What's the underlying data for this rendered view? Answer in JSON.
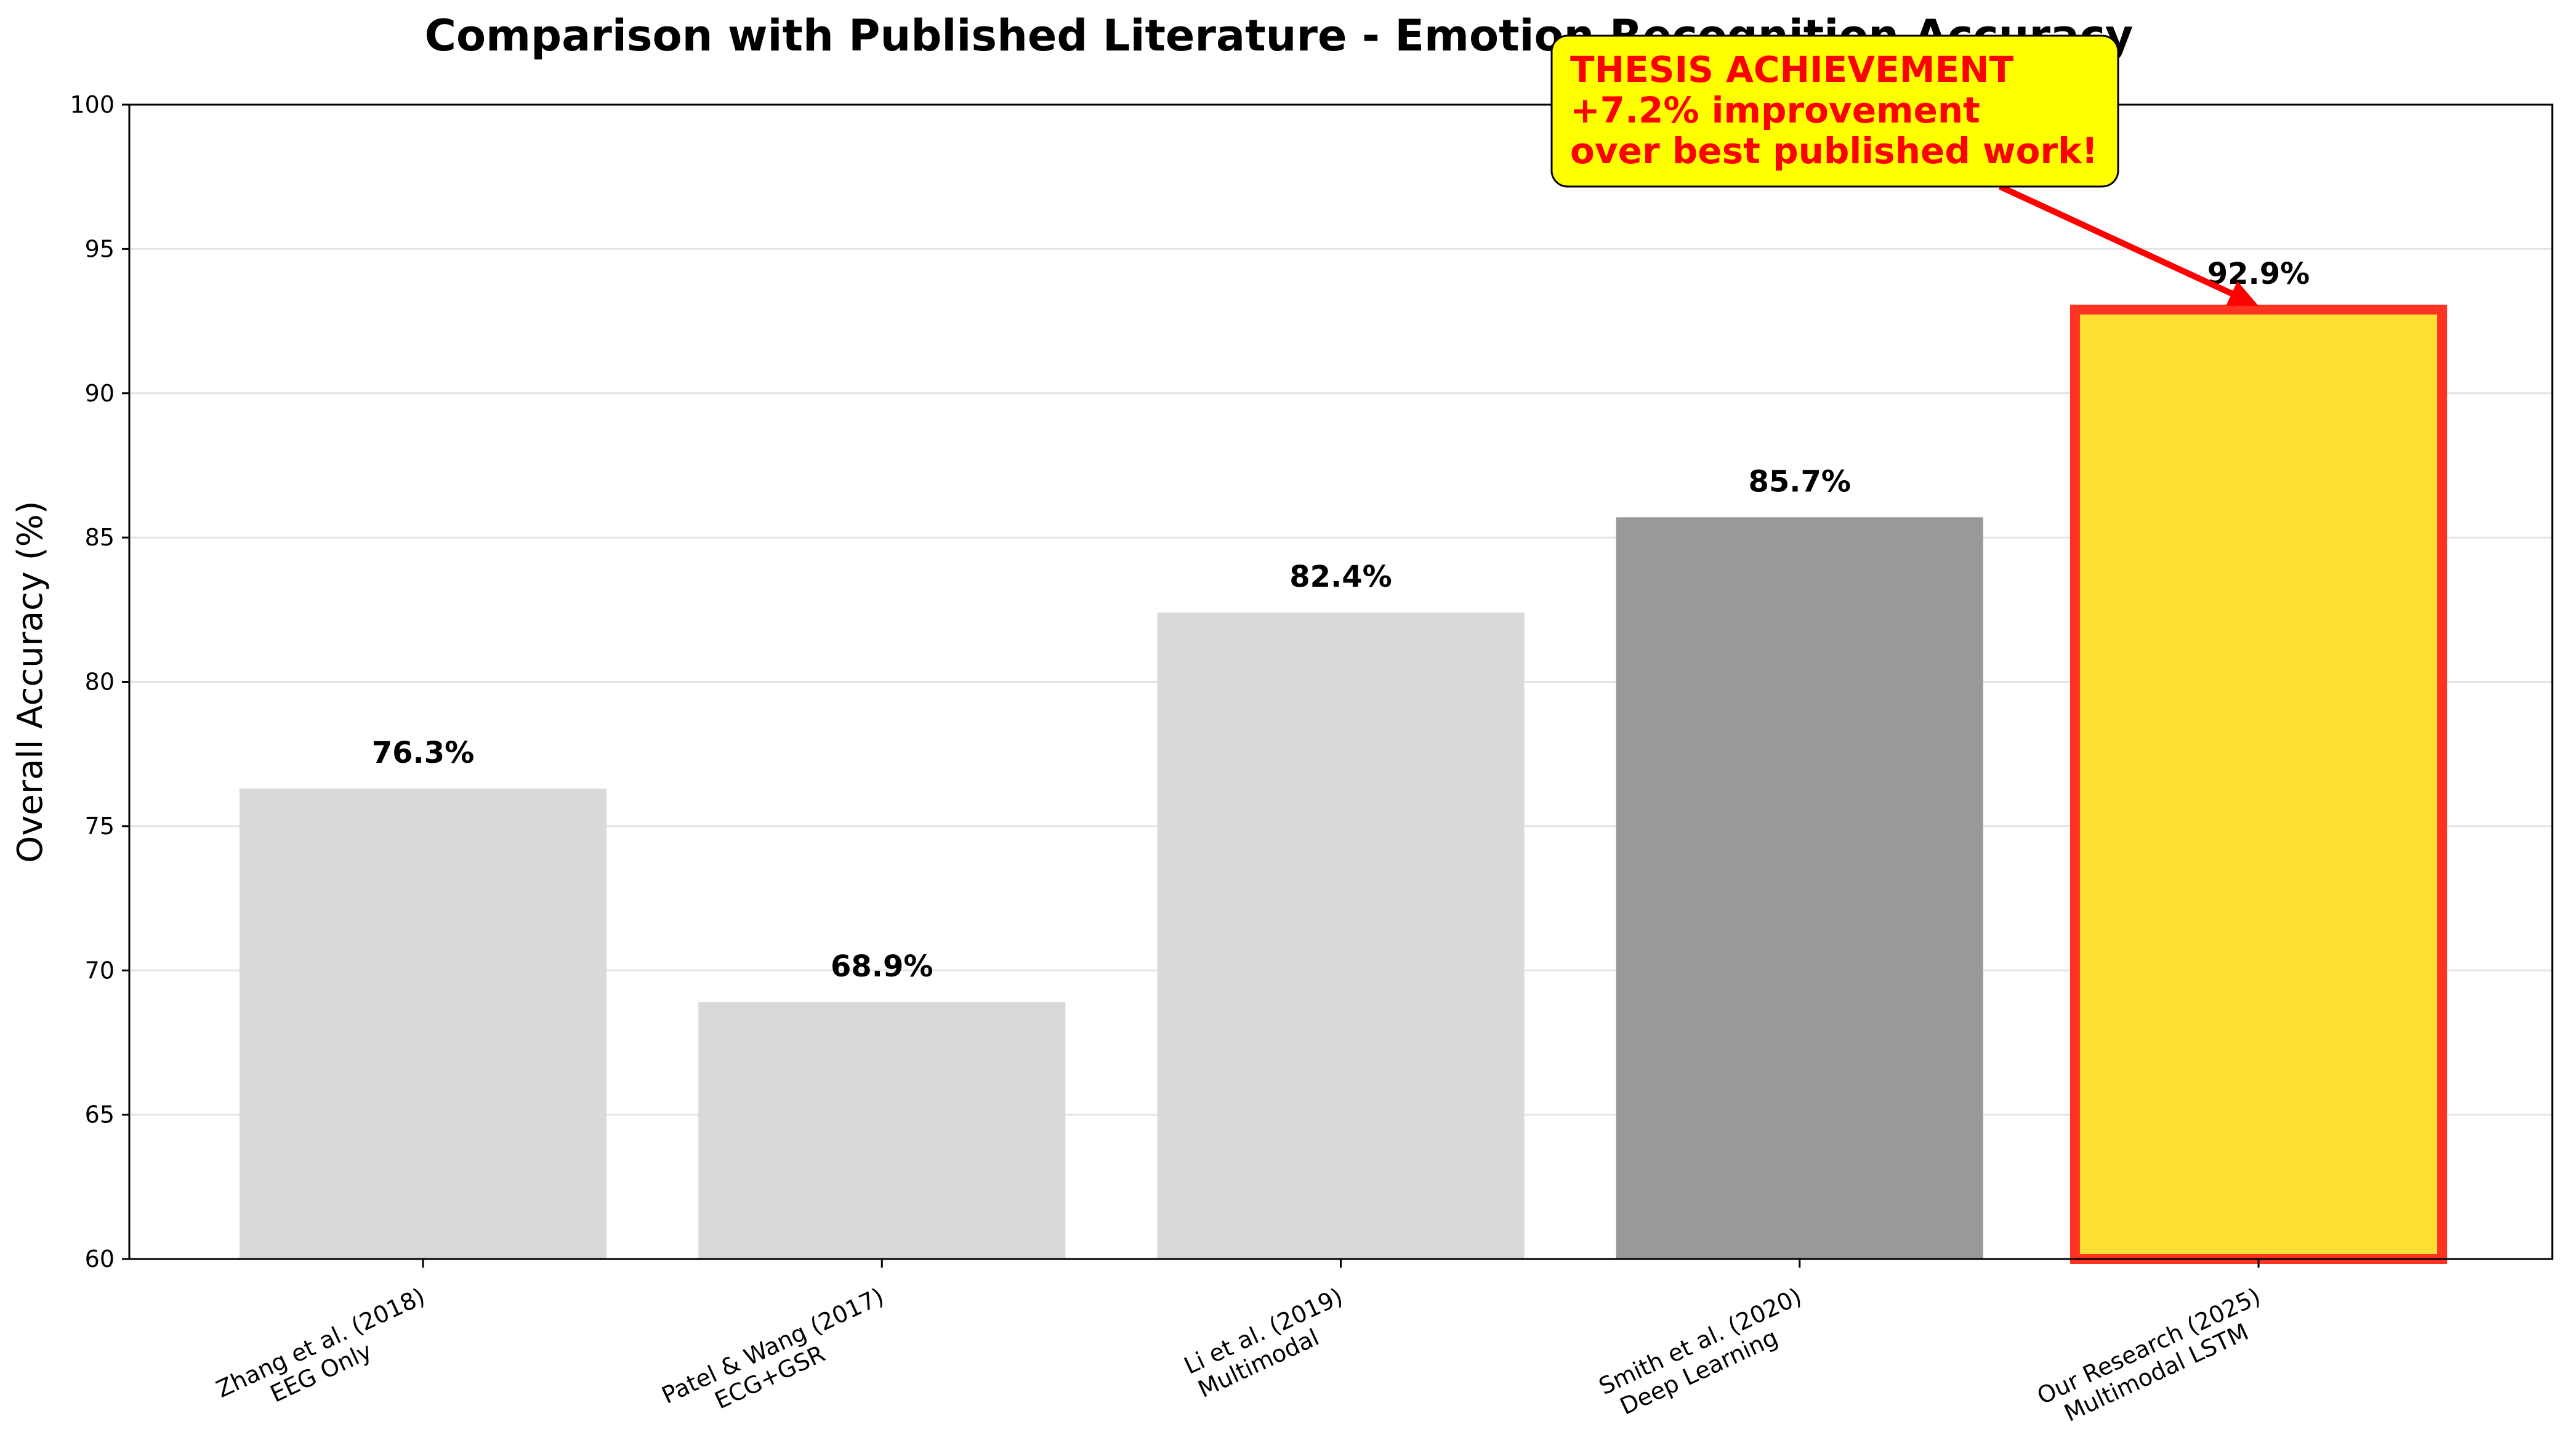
{
  "chart_data": {
    "type": "bar",
    "title": "Comparison with Published Literature - Emotion Recognition Accuracy",
    "xlabel": "",
    "ylabel": "Overall Accuracy (%)",
    "ylim": [
      60,
      100
    ],
    "yticks": [
      60,
      65,
      70,
      75,
      80,
      85,
      90,
      95,
      100
    ],
    "grid": "y",
    "categories": [
      [
        "Zhang et al. (2018)",
        "EEG Only"
      ],
      [
        "Patel & Wang (2017)",
        "ECG+GSR"
      ],
      [
        "Li et al. (2019)",
        "Multimodal"
      ],
      [
        "Smith et al. (2020)",
        "Deep Learning"
      ],
      [
        "Our Research (2025)",
        "Multimodal LSTM"
      ]
    ],
    "values": [
      76.3,
      68.9,
      82.4,
      85.7,
      92.9
    ],
    "value_labels": [
      "76.3%",
      "68.9%",
      "82.4%",
      "85.7%",
      "92.9%"
    ],
    "colors": [
      "#d9d9d9",
      "#d9d9d9",
      "#d9d9d9",
      "#999999",
      "#ffdf33"
    ],
    "highlight": {
      "index": 4,
      "edge_color": "#ff3322"
    },
    "annotation": {
      "lines": [
        "THESIS ACHIEVEMENT",
        "+7.2% improvement",
        "over best published work!"
      ],
      "box_color": "#ffff00",
      "text_color": "#ff0000",
      "arrow_color": "#ff0000",
      "target_index": 4
    }
  }
}
